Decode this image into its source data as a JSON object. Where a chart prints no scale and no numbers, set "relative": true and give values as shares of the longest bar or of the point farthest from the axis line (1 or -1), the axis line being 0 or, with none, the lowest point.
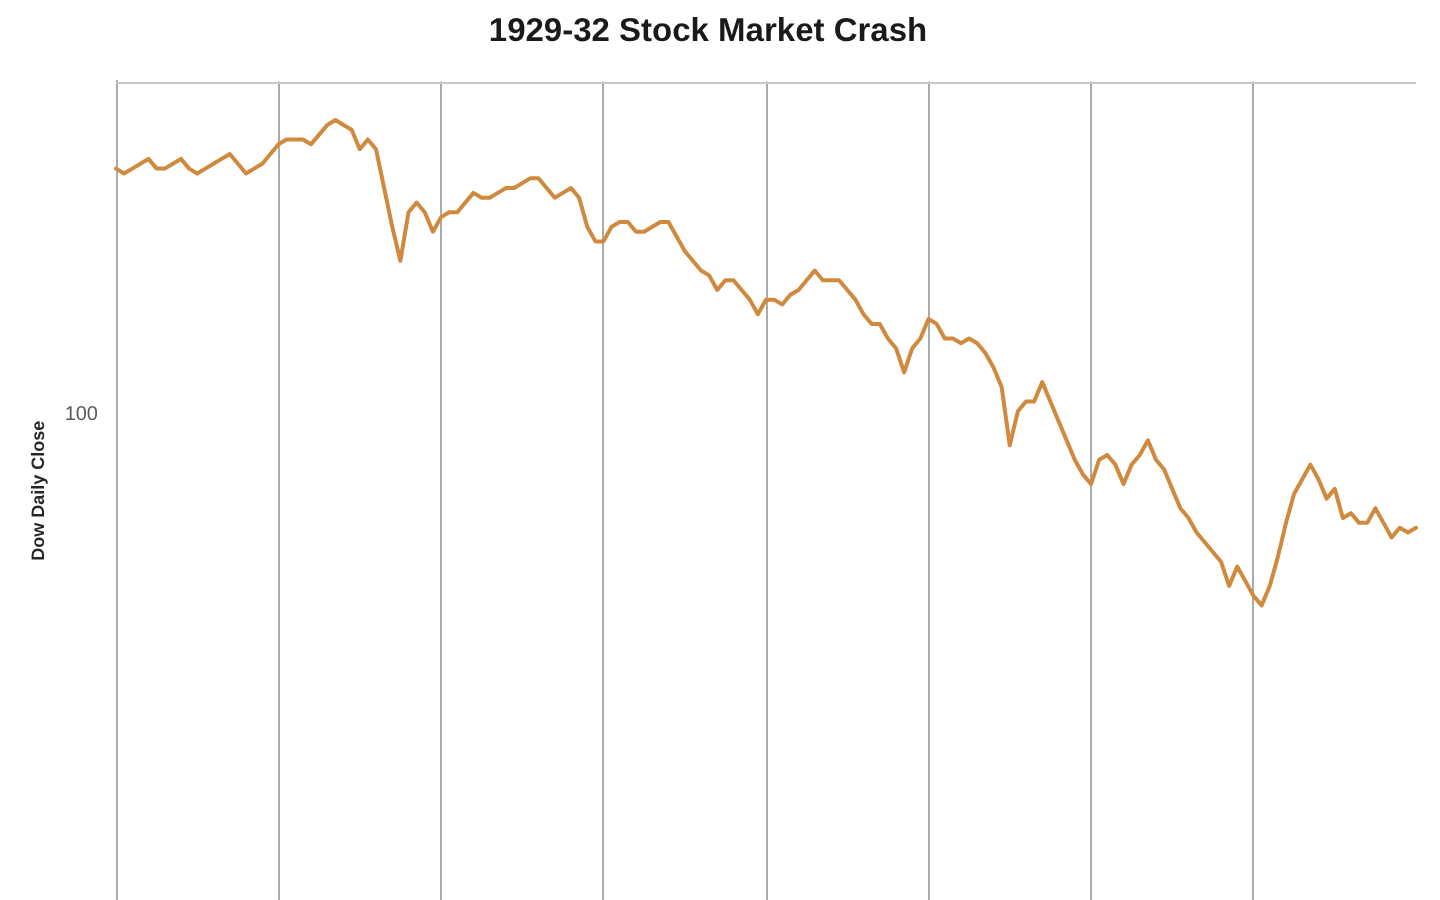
{
  "chart_data": {
    "type": "line",
    "title": "1929-32 Stock Market Crash",
    "ylabel": "Dow Daily Close",
    "relative": true,
    "categories": [
      null,
      null,
      null,
      null,
      null,
      null,
      null,
      null,
      null,
      null,
      null,
      null,
      null,
      null,
      null,
      null,
      null,
      null,
      null,
      null,
      null,
      null,
      null,
      null,
      null,
      null,
      null,
      null,
      null,
      null,
      null,
      null,
      null,
      null,
      null,
      null,
      null,
      null,
      null,
      null,
      null,
      null,
      null,
      null,
      null,
      null,
      null,
      null,
      null,
      null,
      null,
      null,
      null,
      null,
      null,
      null,
      null,
      null,
      null,
      null,
      null,
      null,
      null,
      null,
      null,
      null,
      null,
      null,
      null,
      null,
      null,
      null,
      null,
      null,
      null,
      null,
      null,
      null,
      null,
      null,
      null,
      null,
      null,
      null,
      null,
      null,
      null,
      null,
      null,
      null,
      null,
      null,
      null,
      null,
      null,
      null,
      null,
      null,
      null,
      null,
      null,
      null,
      null,
      null,
      null,
      null,
      null,
      null,
      null,
      null,
      null,
      null,
      null,
      null,
      null,
      null,
      null,
      null,
      null,
      null,
      null,
      null,
      null,
      null,
      null,
      null,
      null,
      null,
      null,
      null,
      null,
      null,
      null,
      null,
      null,
      null,
      null,
      null,
      null,
      null,
      null,
      null,
      null,
      null,
      null,
      null,
      null,
      null,
      null,
      null,
      null,
      null,
      null,
      null,
      null,
      null,
      null,
      null,
      null,
      null,
      null
    ],
    "values": [
      0.9,
      0.89,
      0.9,
      0.91,
      0.92,
      0.9,
      0.9,
      0.91,
      0.92,
      0.9,
      0.89,
      0.9,
      0.91,
      0.92,
      0.93,
      0.91,
      0.89,
      0.9,
      0.91,
      0.93,
      0.95,
      0.96,
      0.96,
      0.96,
      0.95,
      0.97,
      0.99,
      1,
      0.99,
      0.98,
      0.94,
      0.96,
      0.94,
      0.86,
      0.78,
      0.71,
      0.81,
      0.83,
      0.81,
      0.77,
      0.8,
      0.81,
      0.81,
      0.83,
      0.85,
      0.84,
      0.84,
      0.85,
      0.86,
      0.86,
      0.87,
      0.88,
      0.88,
      0.86,
      0.84,
      0.85,
      0.86,
      0.84,
      0.78,
      0.75,
      0.75,
      0.78,
      0.79,
      0.79,
      0.77,
      0.77,
      0.78,
      0.79,
      0.79,
      0.76,
      0.73,
      0.71,
      0.69,
      0.68,
      0.65,
      0.67,
      0.67,
      0.65,
      0.63,
      0.6,
      0.63,
      0.63,
      0.62,
      0.64,
      0.65,
      0.67,
      0.69,
      0.67,
      0.67,
      0.67,
      0.65,
      0.63,
      0.6,
      0.58,
      0.58,
      0.55,
      0.53,
      0.48,
      0.53,
      0.55,
      0.59,
      0.58,
      0.55,
      0.55,
      0.54,
      0.55,
      0.54,
      0.52,
      0.49,
      0.45,
      0.33,
      0.4,
      0.42,
      0.42,
      0.46,
      0.42,
      0.38,
      0.34,
      0.3,
      0.27,
      0.25,
      0.3,
      0.31,
      0.29,
      0.25,
      0.29,
      0.31,
      0.34,
      0.3,
      0.28,
      0.24,
      0.2,
      0.18,
      0.15,
      0.13,
      0.11,
      0.09,
      0.04,
      0.08,
      0.05,
      0.02,
      0,
      0.04,
      0.1,
      0.17,
      0.23,
      0.26,
      0.29,
      0.26,
      0.22,
      0.24,
      0.18,
      0.19,
      0.17,
      0.17,
      0.2,
      0.17,
      0.14,
      0.16,
      0.15,
      0.16
    ],
    "color": "#d08a3e",
    "annotations": [
      "100"
    ],
    "grid": "x",
    "legend": false,
    "marker": "none",
    "line_style": "solid"
  }
}
